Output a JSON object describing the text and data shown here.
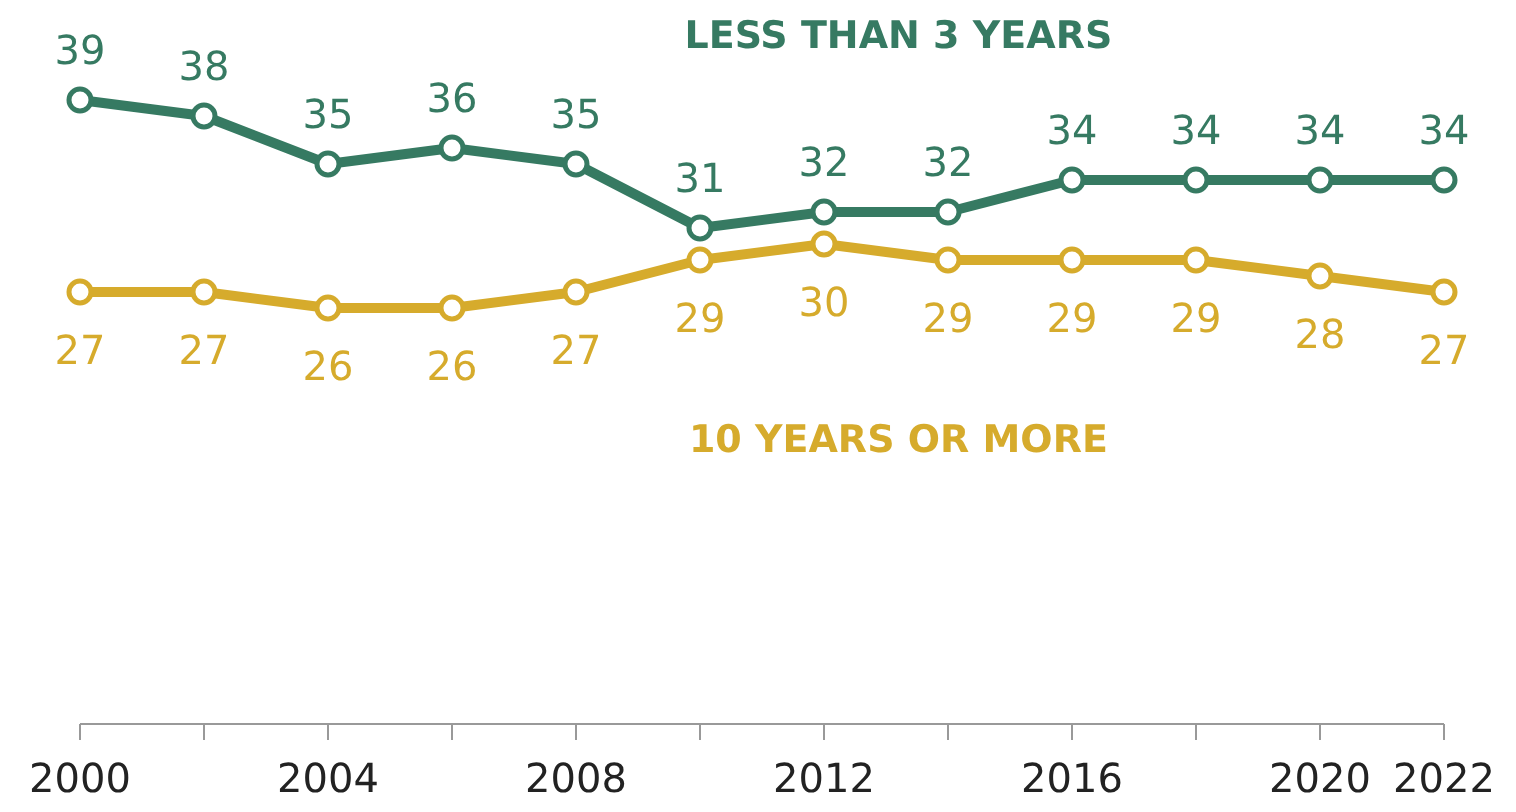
{
  "chart_data": {
    "type": "line",
    "x": [
      2000,
      2002,
      2004,
      2006,
      2008,
      2010,
      2012,
      2014,
      2016,
      2018,
      2020,
      2022
    ],
    "series": [
      {
        "name": "LESS THAN 3 YEARS",
        "color": "#367a62",
        "values": [
          39,
          38,
          35,
          36,
          35,
          31,
          32,
          32,
          34,
          34,
          34,
          34
        ]
      },
      {
        "name": "10 YEARS OR MORE",
        "color": "#d6ab2c",
        "values": [
          27,
          27,
          26,
          26,
          27,
          29,
          30,
          29,
          29,
          29,
          28,
          27
        ]
      }
    ],
    "xlim": [
      2000,
      2022
    ],
    "xticks": [
      2000,
      {
        "value": 2002,
        "label": null
      },
      2004,
      {
        "value": 2006,
        "label": null
      },
      2008,
      {
        "value": 2010,
        "label": null
      },
      2012,
      {
        "value": 2014,
        "label": null
      },
      2016,
      {
        "value": 2018,
        "label": null
      },
      2020,
      2022
    ],
    "data_labels": true,
    "marker": "circle",
    "line_style": "solid",
    "grid": false
  }
}
